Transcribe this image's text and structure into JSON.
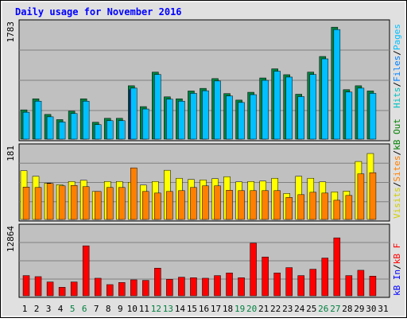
{
  "title": "Daily usage for November 2016",
  "colors": {
    "hits": "#00c0ff",
    "hits_shade": "#0080a0",
    "files": "#008040",
    "pages": "#0000c0",
    "visits": "#ffff00",
    "sites": "#ff8000",
    "kbin": "#0000ff",
    "kbout": "#008000",
    "kbf": "#ff0000",
    "panel_bg": "#c0c0c0",
    "frame_bg": "#e0e0e0",
    "title_color": "#0000ff"
  },
  "axis_labels": {
    "top_max": "1783",
    "mid_max": "181",
    "bottom_max": "12864"
  },
  "legends": {
    "top": [
      {
        "text": "Hits",
        "color": "#00c0c0"
      },
      {
        "text": "/",
        "color": "#000000"
      },
      {
        "text": "Files",
        "color": "#0080ff"
      },
      {
        "text": "/",
        "color": "#000000"
      },
      {
        "text": "Pages",
        "color": "#00c0ff"
      }
    ],
    "mid": [
      {
        "text": "Visits",
        "color": "#d0d000"
      },
      {
        "text": "/",
        "color": "#000000"
      },
      {
        "text": "Sites",
        "color": "#ff8000"
      },
      {
        "text": "/",
        "color": "#000000"
      },
      {
        "text": "kB Out",
        "color": "#008000"
      }
    ],
    "bottom": [
      {
        "text": "kB In",
        "color": "#0000ff"
      },
      {
        "text": "/",
        "color": "#000000"
      },
      {
        "text": "kB F",
        "color": "#ff0000"
      }
    ]
  },
  "chart_data": {
    "type": "bar",
    "categories": [
      "1",
      "2",
      "3",
      "4",
      "5",
      "6",
      "7",
      "8",
      "9",
      "10",
      "11",
      "12",
      "13",
      "14",
      "15",
      "16",
      "17",
      "18",
      "19",
      "20",
      "21",
      "22",
      "23",
      "24",
      "25",
      "26",
      "27",
      "28",
      "29",
      "30",
      "31"
    ],
    "weekend_days": [
      "5",
      "6",
      "12",
      "13",
      "19",
      "20",
      "26",
      "27"
    ],
    "panels": [
      {
        "ylim": [
          0,
          1783
        ],
        "series": [
          {
            "name": "Hits",
            "values": [
              450,
              620,
              380,
              300,
              430,
              620,
              260,
              320,
              320,
              820,
              500,
              1030,
              650,
              620,
              740,
              780,
              930,
              700,
              600,
              720,
              940,
              1080,
              990,
              690,
              1030,
              1270,
              1720,
              760,
              820,
              740,
              0
            ]
          },
          {
            "name": "Files",
            "values": [
              450,
              620,
              380,
              300,
              430,
              620,
              260,
              320,
              320,
              820,
              500,
              1030,
              650,
              620,
              740,
              780,
              930,
              700,
              600,
              720,
              940,
              1080,
              990,
              690,
              1030,
              1270,
              1720,
              760,
              820,
              740,
              0
            ]
          },
          {
            "name": "Pages",
            "values": [
              0,
              0,
              0,
              0,
              0,
              0,
              0,
              0,
              0,
              760,
              0,
              0,
              0,
              0,
              0,
              0,
              0,
              0,
              0,
              0,
              0,
              0,
              0,
              0,
              0,
              0,
              0,
              0,
              0,
              0,
              0
            ]
          }
        ]
      },
      {
        "ylim": [
          0,
          181
        ],
        "series": [
          {
            "name": "Visits",
            "values": [
              122,
              108,
              91,
              87,
              95,
              98,
              70,
              95,
              95,
              93,
              86,
              95,
              123,
              103,
              100,
              99,
              102,
              107,
              94,
              95,
              96,
              103,
              65,
              108,
              103,
              94,
              69,
              71,
              145,
              165,
              0
            ]
          },
          {
            "name": "Sites",
            "values": [
              81,
              80,
              90,
              84,
              85,
              82,
              70,
              80,
              80,
              129,
              70,
              66,
              70,
              72,
              80,
              84,
              84,
              73,
              72,
              72,
              72,
              72,
              55,
              62,
              68,
              66,
              48,
              60,
              114,
              117,
              0
            ]
          }
        ]
      },
      {
        "ylim": [
          0,
          12864
        ],
        "series": [
          {
            "name": "kB Out",
            "values": [
              0,
              0,
              0,
              0,
              0,
              0,
              0,
              0,
              0,
              0,
              0,
              0,
              0,
              0,
              0,
              0,
              0,
              0,
              0,
              0,
              0,
              0,
              0,
              0,
              0,
              0,
              0,
              0,
              0,
              0,
              0
            ]
          },
          {
            "name": "kB F",
            "values": [
              3800,
              3600,
              2600,
              1600,
              2600,
              9400,
              3300,
              2100,
              2500,
              3000,
              2900,
              5200,
              3100,
              3500,
              3400,
              3300,
              3800,
              4300,
              3400,
              9900,
              7300,
              4300,
              5300,
              3800,
              5000,
              7100,
              10900,
              3800,
              4800,
              3700,
              0
            ]
          }
        ]
      }
    ]
  }
}
